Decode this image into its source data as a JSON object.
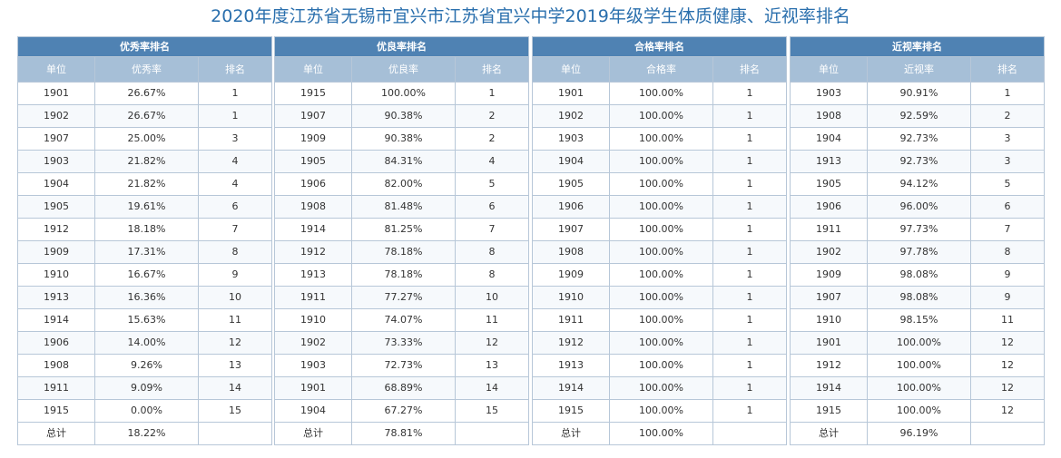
{
  "title": "2020年度江苏省无锡市宜兴市江苏省宜兴中学2019年级学生体质健康、近视率排名",
  "tables": [
    {
      "caption": "优秀率排名",
      "headers": [
        "单位",
        "优秀率",
        "排名"
      ],
      "rows": [
        [
          "1901",
          "26.67%",
          "1"
        ],
        [
          "1902",
          "26.67%",
          "1"
        ],
        [
          "1907",
          "25.00%",
          "3"
        ],
        [
          "1903",
          "21.82%",
          "4"
        ],
        [
          "1904",
          "21.82%",
          "4"
        ],
        [
          "1905",
          "19.61%",
          "6"
        ],
        [
          "1912",
          "18.18%",
          "7"
        ],
        [
          "1909",
          "17.31%",
          "8"
        ],
        [
          "1910",
          "16.67%",
          "9"
        ],
        [
          "1913",
          "16.36%",
          "10"
        ],
        [
          "1914",
          "15.63%",
          "11"
        ],
        [
          "1906",
          "14.00%",
          "12"
        ],
        [
          "1908",
          "9.26%",
          "13"
        ],
        [
          "1911",
          "9.09%",
          "14"
        ],
        [
          "1915",
          "0.00%",
          "15"
        ]
      ],
      "total": [
        "总计",
        "18.22%",
        ""
      ]
    },
    {
      "caption": "优良率排名",
      "headers": [
        "单位",
        "优良率",
        "排名"
      ],
      "rows": [
        [
          "1915",
          "100.00%",
          "1"
        ],
        [
          "1907",
          "90.38%",
          "2"
        ],
        [
          "1909",
          "90.38%",
          "2"
        ],
        [
          "1905",
          "84.31%",
          "4"
        ],
        [
          "1906",
          "82.00%",
          "5"
        ],
        [
          "1908",
          "81.48%",
          "6"
        ],
        [
          "1914",
          "81.25%",
          "7"
        ],
        [
          "1912",
          "78.18%",
          "8"
        ],
        [
          "1913",
          "78.18%",
          "8"
        ],
        [
          "1911",
          "77.27%",
          "10"
        ],
        [
          "1910",
          "74.07%",
          "11"
        ],
        [
          "1902",
          "73.33%",
          "12"
        ],
        [
          "1903",
          "72.73%",
          "13"
        ],
        [
          "1901",
          "68.89%",
          "14"
        ],
        [
          "1904",
          "67.27%",
          "15"
        ]
      ],
      "total": [
        "总计",
        "78.81%",
        ""
      ]
    },
    {
      "caption": "合格率排名",
      "headers": [
        "单位",
        "合格率",
        "排名"
      ],
      "rows": [
        [
          "1901",
          "100.00%",
          "1"
        ],
        [
          "1902",
          "100.00%",
          "1"
        ],
        [
          "1903",
          "100.00%",
          "1"
        ],
        [
          "1904",
          "100.00%",
          "1"
        ],
        [
          "1905",
          "100.00%",
          "1"
        ],
        [
          "1906",
          "100.00%",
          "1"
        ],
        [
          "1907",
          "100.00%",
          "1"
        ],
        [
          "1908",
          "100.00%",
          "1"
        ],
        [
          "1909",
          "100.00%",
          "1"
        ],
        [
          "1910",
          "100.00%",
          "1"
        ],
        [
          "1911",
          "100.00%",
          "1"
        ],
        [
          "1912",
          "100.00%",
          "1"
        ],
        [
          "1913",
          "100.00%",
          "1"
        ],
        [
          "1914",
          "100.00%",
          "1"
        ],
        [
          "1915",
          "100.00%",
          "1"
        ]
      ],
      "total": [
        "总计",
        "100.00%",
        ""
      ]
    },
    {
      "caption": "近视率排名",
      "headers": [
        "单位",
        "近视率",
        "排名"
      ],
      "rows": [
        [
          "1903",
          "90.91%",
          "1"
        ],
        [
          "1908",
          "92.59%",
          "2"
        ],
        [
          "1904",
          "92.73%",
          "3"
        ],
        [
          "1913",
          "92.73%",
          "3"
        ],
        [
          "1905",
          "94.12%",
          "5"
        ],
        [
          "1906",
          "96.00%",
          "6"
        ],
        [
          "1911",
          "97.73%",
          "7"
        ],
        [
          "1902",
          "97.78%",
          "8"
        ],
        [
          "1909",
          "98.08%",
          "9"
        ],
        [
          "1907",
          "98.08%",
          "9"
        ],
        [
          "1910",
          "98.15%",
          "11"
        ],
        [
          "1901",
          "100.00%",
          "12"
        ],
        [
          "1912",
          "100.00%",
          "12"
        ],
        [
          "1914",
          "100.00%",
          "12"
        ],
        [
          "1915",
          "100.00%",
          "12"
        ]
      ],
      "total": [
        "总计",
        "96.19%",
        ""
      ]
    }
  ]
}
